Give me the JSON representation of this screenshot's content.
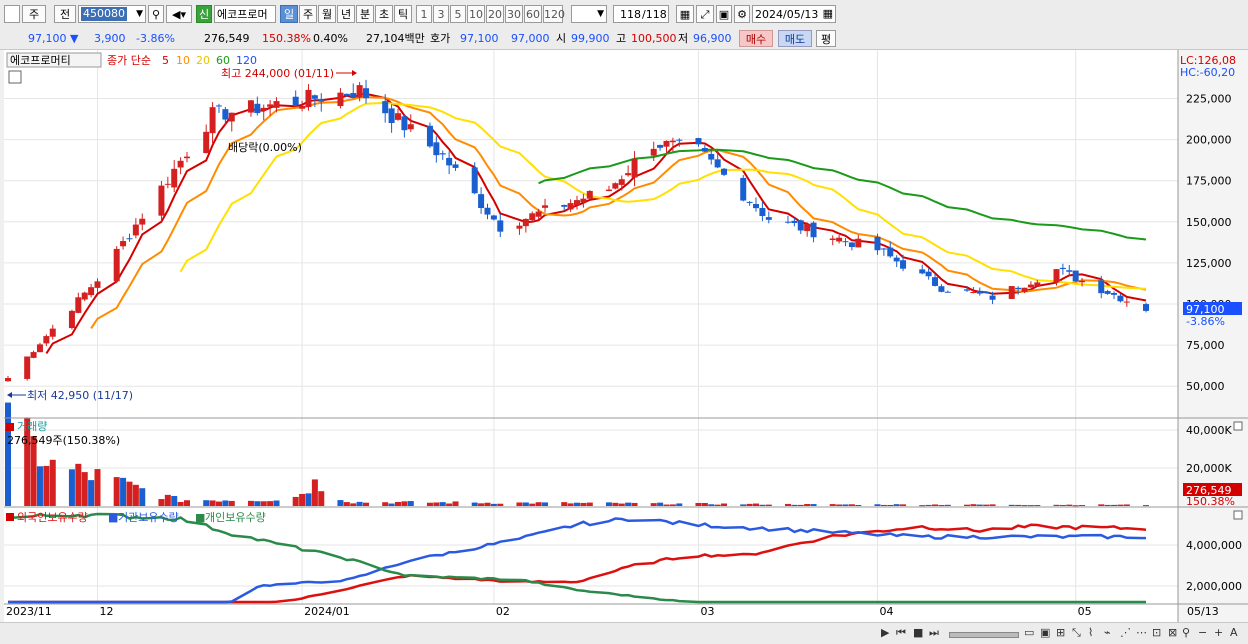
{
  "toolbar": {
    "type_label": "주",
    "prefix_label": "전",
    "code": "450080",
    "name": "에코프로머",
    "badge": "신",
    "periods": [
      "일",
      "주",
      "월",
      "년",
      "분",
      "초",
      "틱"
    ],
    "selected_period": "일",
    "intervals": [
      "1",
      "3",
      "5",
      "10",
      "20",
      "30",
      "60",
      "120"
    ],
    "page_count": "118",
    "page_total": "/118",
    "date": "2024/05/13"
  },
  "infobar": {
    "price": "97,100",
    "arrow": "▼",
    "change": "3,900",
    "change_pct": "-3.86%",
    "volume": "276,549",
    "volume_ratio": "150.38%",
    "turnover": "0.40%",
    "amount": "27,104백만",
    "quote_label": "호가",
    "ask": "97,100",
    "bid": "97,000",
    "open_label": "시",
    "open": "99,900",
    "high_label": "고",
    "high": "100,500",
    "low_label": "저",
    "low": "96,900",
    "buy_label": "매수",
    "sell_label": "매도",
    "avg_label": "평"
  },
  "price_panel": {
    "stock_label": "에코프로머티",
    "ma_title": "종가 단순",
    "ma_periods": [
      "5",
      "10",
      "20",
      "60",
      "120"
    ],
    "ma_colors": [
      "#d40000",
      "#ff8c00",
      "#ffd400",
      "#1a9a1a",
      "#1a50ff"
    ],
    "lc": "LC:126,08",
    "hc": "HC:-60,20",
    "high_marker": "최고 244,000 (01/11)",
    "low_marker": "최저 42,950 (11/17)",
    "dividend_marker": "배당락(0.00%)",
    "current_price_label": "97,100",
    "current_change_label": "-3.86%",
    "y_ticks": [
      "225,000",
      "200,000",
      "175,000",
      "150,000",
      "125,000",
      "100,000",
      "75,000",
      "50,000"
    ]
  },
  "volume_panel": {
    "title": "거래량",
    "value_label": "276,549주(150.38%)",
    "y_ticks": [
      "40,000K",
      "20,000K"
    ],
    "current_label": "276,549",
    "current_pct": "150.38%"
  },
  "holdings_panel": {
    "series_labels": [
      "외국인보유수량",
      "기관보유수량",
      "개인보유수량"
    ],
    "y_ticks": [
      "4,000,000",
      "2,000,000"
    ]
  },
  "x_axis": {
    "labels": [
      "2023/11",
      "12",
      "2024/01",
      "02",
      "03",
      "04",
      "05"
    ],
    "last_label": "05/13"
  },
  "colors": {
    "up": "#d42020",
    "down": "#1a5fd0",
    "foreign": "#dd1010",
    "institution": "#2a5ae0",
    "individual": "#2a8a4a",
    "grid": "#e6e6e6"
  },
  "chart_data": {
    "type": "candlestick",
    "anchors": [
      {
        "date": "2023-11-17",
        "price": 55000
      },
      {
        "date": "2023-12-01",
        "price": 115000
      },
      {
        "date": "2023-12-19",
        "price": 215000
      },
      {
        "date": "2024-01-11",
        "price": 230000
      },
      {
        "date": "2024-01-24",
        "price": 190000
      },
      {
        "date": "2024-02-02",
        "price": 147000
      },
      {
        "date": "2024-02-19",
        "price": 170000
      },
      {
        "date": "2024-02-26",
        "price": 198000
      },
      {
        "date": "2024-03-04",
        "price": 193000
      },
      {
        "date": "2024-03-15",
        "price": 152000
      },
      {
        "date": "2024-04-01",
        "price": 133000
      },
      {
        "date": "2024-04-11",
        "price": 110000
      },
      {
        "date": "2024-04-19",
        "price": 104000
      },
      {
        "date": "2024-04-29",
        "price": 121000
      },
      {
        "date": "2024-05-13",
        "price": 97100
      }
    ],
    "foreign_holdings": [
      [
        0,
        800000
      ],
      [
        0.05,
        600000
      ],
      [
        0.1,
        400000
      ],
      [
        0.2,
        1100000
      ],
      [
        0.25,
        1300000
      ],
      [
        0.35,
        2500000
      ],
      [
        0.45,
        2200000
      ],
      [
        0.5,
        2200000
      ],
      [
        0.55,
        3000000
      ],
      [
        0.6,
        3500000
      ],
      [
        0.65,
        3500000
      ],
      [
        0.72,
        4400000
      ],
      [
        0.8,
        4900000
      ],
      [
        0.85,
        4700000
      ],
      [
        0.9,
        4900000
      ],
      [
        1,
        4800000
      ]
    ],
    "institution_holdings": [
      [
        0,
        1000000
      ],
      [
        0.05,
        500000
      ],
      [
        0.15,
        500000
      ],
      [
        0.18,
        700000
      ],
      [
        0.22,
        2000000
      ],
      [
        0.3,
        2300000
      ],
      [
        0.35,
        3200000
      ],
      [
        0.45,
        4300000
      ],
      [
        0.5,
        5000000
      ],
      [
        0.55,
        5300000
      ],
      [
        0.6,
        5000000
      ],
      [
        0.7,
        4700000
      ],
      [
        0.8,
        4400000
      ],
      [
        1,
        4400000
      ]
    ],
    "individual_holdings": [
      [
        0,
        5300000
      ],
      [
        0.05,
        5500000
      ],
      [
        0.15,
        5300000
      ],
      [
        0.2,
        4500000
      ],
      [
        0.3,
        3300000
      ],
      [
        0.35,
        2500000
      ],
      [
        0.45,
        2300000
      ],
      [
        0.5,
        1800000
      ],
      [
        0.6,
        1200000
      ],
      [
        0.7,
        1000000
      ],
      [
        0.8,
        900000
      ],
      [
        1,
        700000
      ]
    ],
    "volume_profile": [
      [
        0,
        42000
      ],
      [
        0.04,
        20000
      ],
      [
        0.08,
        15000
      ],
      [
        0.15,
        3000
      ],
      [
        0.25,
        3500
      ],
      [
        0.27,
        12000
      ],
      [
        0.3,
        2000
      ],
      [
        0.5,
        1500
      ],
      [
        0.7,
        800
      ],
      [
        1,
        600
      ]
    ]
  }
}
